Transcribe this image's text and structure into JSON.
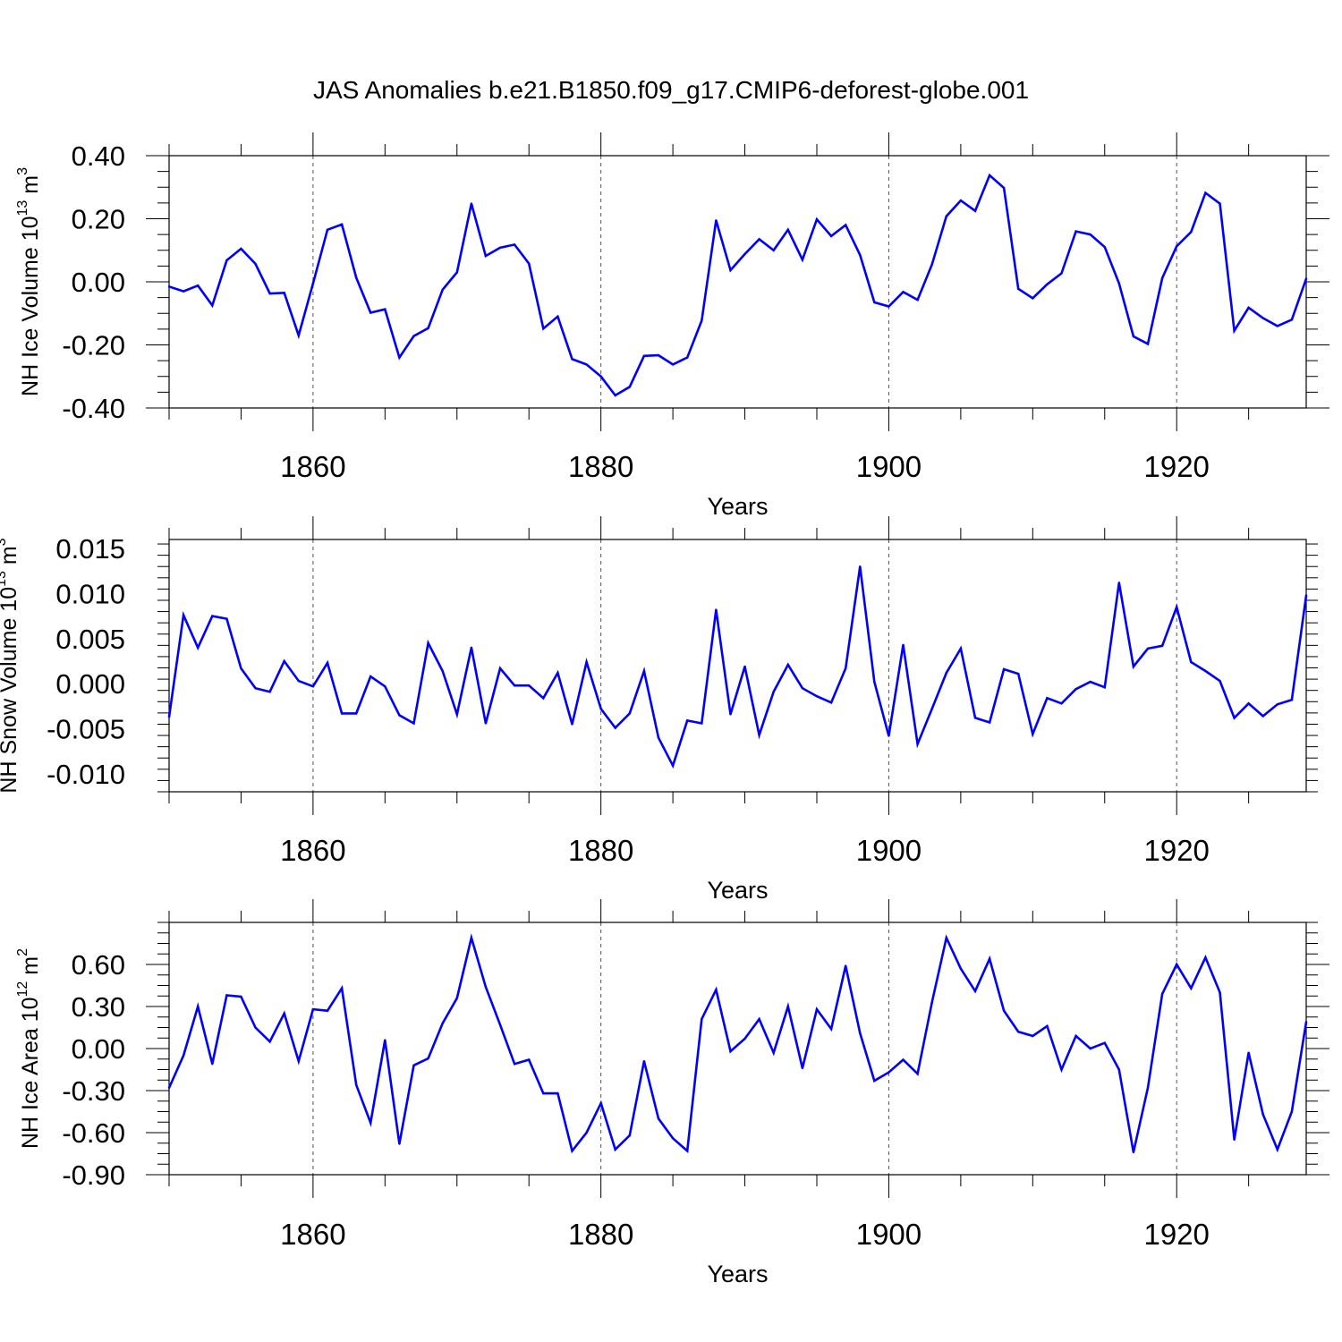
{
  "title": "JAS Anomalies b.e21.B1850.f09_g17.CMIP6-deforest-globe.001",
  "chart_data": [
    {
      "type": "line",
      "ylabel": "NH Ice Volume 10",
      "ylabel_exp": "13",
      "ylabel_unit": " m",
      "ylabel_unit_exp": "3",
      "xlabel": "Years",
      "xlim": [
        1850,
        1929
      ],
      "ylim": [
        -0.4,
        0.4
      ],
      "yticks": [
        "0.40",
        "0.20",
        "0.00",
        "-0.20",
        "-0.40"
      ],
      "ytick_values": [
        0.4,
        0.2,
        0.0,
        -0.2,
        -0.4
      ],
      "xticks": [
        "1860",
        "1880",
        "1900",
        "1920"
      ],
      "xtick_values": [
        1860,
        1880,
        1900,
        1920
      ],
      "color": "#0000ff",
      "x_start": 1850,
      "values": [
        -0.015,
        -0.03,
        -0.012,
        -0.075,
        0.068,
        0.105,
        0.057,
        -0.037,
        -0.035,
        -0.17,
        -0.005,
        0.165,
        0.182,
        0.013,
        -0.098,
        -0.087,
        -0.24,
        -0.172,
        -0.147,
        -0.025,
        0.03,
        0.248,
        0.082,
        0.108,
        0.118,
        0.058,
        -0.148,
        -0.11,
        -0.245,
        -0.262,
        -0.3,
        -0.36,
        -0.333,
        -0.235,
        -0.233,
        -0.262,
        -0.24,
        -0.123,
        0.195,
        0.037,
        0.088,
        0.135,
        0.1,
        0.165,
        0.07,
        0.198,
        0.145,
        0.18,
        0.085,
        -0.065,
        -0.078,
        -0.032,
        -0.057,
        0.055,
        0.208,
        0.258,
        0.225,
        0.338,
        0.298,
        -0.022,
        -0.052,
        -0.008,
        0.027,
        0.16,
        0.15,
        0.11,
        -0.005,
        -0.173,
        -0.197,
        0.012,
        0.113,
        0.158,
        0.282,
        0.248,
        -0.155,
        -0.082,
        -0.115,
        -0.14,
        -0.12,
        0.01
      ]
    },
    {
      "type": "line",
      "ylabel": "NH Snow Volume 10",
      "ylabel_exp": "13",
      "ylabel_unit": " m",
      "ylabel_unit_exp": "3",
      "xlabel": "Years",
      "xlim": [
        1850,
        1929
      ],
      "ylim": [
        -0.012,
        0.016
      ],
      "yticks": [
        "0.015",
        "0.010",
        "0.005",
        "0.000",
        "-0.005",
        "-0.010"
      ],
      "ytick_values": [
        0.015,
        0.01,
        0.005,
        0.0,
        -0.005,
        -0.01
      ],
      "xticks": [
        "1860",
        "1880",
        "1900",
        "1920"
      ],
      "xtick_values": [
        1860,
        1880,
        1900,
        1920
      ],
      "color": "#0000ff",
      "x_start": 1850,
      "values": [
        -0.0037,
        0.0076,
        0.004,
        0.0075,
        0.0072,
        0.0017,
        -0.0005,
        -0.0009,
        0.0025,
        0.0003,
        -0.0003,
        0.0023,
        -0.0033,
        -0.0033,
        0.0008,
        -0.0003,
        -0.0035,
        -0.0044,
        0.0045,
        0.0014,
        -0.0034,
        0.004,
        -0.0044,
        0.0017,
        -0.0002,
        -0.0002,
        -0.0016,
        0.0012,
        -0.0045,
        0.0024,
        -0.0028,
        -0.0049,
        -0.0033,
        0.0014,
        -0.006,
        -0.0091,
        -0.0041,
        -0.0044,
        0.0082,
        -0.0034,
        0.0019,
        -0.0057,
        -0.0009,
        0.0021,
        -0.0005,
        -0.0014,
        -0.0021,
        0.0017,
        0.013,
        0.0002,
        -0.0058,
        0.0043,
        -0.0067,
        -0.0028,
        0.0012,
        0.0039,
        -0.0038,
        -0.0043,
        0.0016,
        0.0011,
        -0.0056,
        -0.0016,
        -0.0022,
        -0.0006,
        0.0002,
        -0.0004,
        0.0112,
        0.0019,
        0.0039,
        0.0042,
        0.0085,
        0.0024,
        0.0014,
        0.0003,
        -0.0038,
        -0.0022,
        -0.0036,
        -0.0023,
        -0.0018,
        0.0098
      ]
    },
    {
      "type": "line",
      "ylabel": "NH Ice Area 10",
      "ylabel_exp": "12",
      "ylabel_unit": " m",
      "ylabel_unit_exp": "2",
      "xlabel": "Years",
      "xlim": [
        1850,
        1929
      ],
      "ylim": [
        -0.9,
        0.9
      ],
      "yticks": [
        "0.60",
        "0.30",
        "0.00",
        "-0.30",
        "-0.60",
        "-0.90"
      ],
      "ytick_values": [
        0.6,
        0.3,
        0.0,
        -0.3,
        -0.6,
        -0.9
      ],
      "xticks": [
        "1860",
        "1880",
        "1900",
        "1920"
      ],
      "xtick_values": [
        1860,
        1880,
        1900,
        1920
      ],
      "color": "#0000ff",
      "x_start": 1850,
      "values": [
        -0.28,
        -0.05,
        0.3,
        -0.11,
        0.38,
        0.37,
        0.15,
        0.05,
        0.25,
        -0.09,
        0.28,
        0.27,
        0.43,
        -0.26,
        -0.53,
        0.06,
        -0.68,
        -0.12,
        -0.07,
        0.18,
        0.36,
        0.79,
        0.44,
        0.17,
        -0.11,
        -0.08,
        -0.32,
        -0.32,
        -0.73,
        -0.6,
        -0.39,
        -0.72,
        -0.62,
        -0.09,
        -0.5,
        -0.64,
        -0.73,
        0.21,
        0.42,
        -0.02,
        0.07,
        0.21,
        -0.03,
        0.3,
        -0.14,
        0.28,
        0.14,
        0.59,
        0.11,
        -0.23,
        -0.17,
        -0.08,
        -0.18,
        0.33,
        0.79,
        0.57,
        0.41,
        0.64,
        0.27,
        0.12,
        0.09,
        0.16,
        -0.15,
        0.09,
        0.0,
        0.04,
        -0.15,
        -0.74,
        -0.28,
        0.39,
        0.6,
        0.43,
        0.65,
        0.4,
        -0.65,
        -0.03,
        -0.47,
        -0.72,
        -0.45,
        0.19
      ]
    }
  ]
}
